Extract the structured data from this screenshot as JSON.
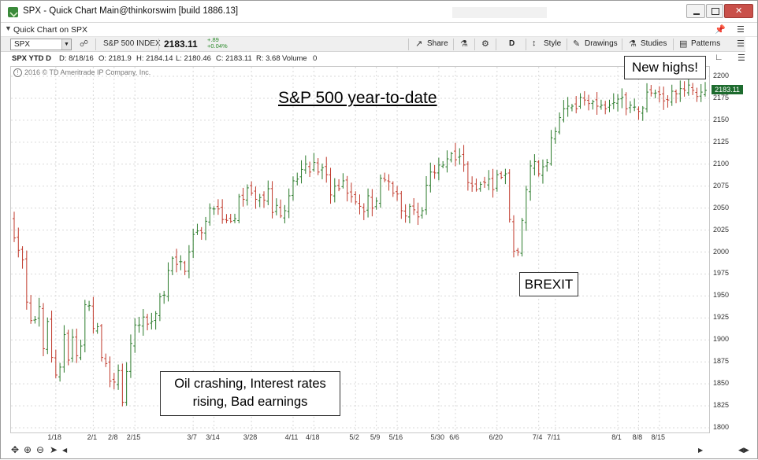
{
  "window": {
    "title": "SPX - Quick Chart Main@thinkorswim [build 1886.13]",
    "subtab": "Quick Chart on SPX"
  },
  "toolbar": {
    "symbol": "SPX",
    "index_name": "S&P 500 INDEX",
    "last": "2183.11",
    "net_change": "+.89",
    "pct_change": "+0.04%",
    "share_label": "Share",
    "timeframe_label": "D",
    "style_label": "Style",
    "drawings_label": "Drawings",
    "studies_label": "Studies",
    "patterns_label": "Patterns"
  },
  "dataline": {
    "symbol_period": "SPX YTD D",
    "date": "D: 8/18/16",
    "open": "O: 2181.9",
    "high": "H: 2184.14",
    "low": "L: 2180.46",
    "close": "C: 2183.11",
    "range": "R: 3.68",
    "volume_label": "Volume",
    "volume_value": "0"
  },
  "copyright": "2016 © TD Ameritrade IP Company, Inc.",
  "price_tag": "2183.11",
  "annotations": {
    "title": "S&P 500 year-to-date",
    "new_highs": "New highs!",
    "brexit": "BREXIT",
    "oil_line1": "Oil crashing, Interest rates",
    "oil_line2": "rising, Bad earnings"
  },
  "colors": {
    "up": "#2a7a2a",
    "down": "#c0392b",
    "grid": "#d9d9d9",
    "price_tag_bg": "#1d6b2e"
  },
  "chart_data": {
    "type": "ohlc",
    "title": "S&P 500 year-to-date",
    "x_tick_labels": [
      "1/18",
      "2/1",
      "2/8",
      "2/15",
      "3/7",
      "3/14",
      "3/28",
      "4/11",
      "4/18",
      "5/2",
      "5/9",
      "5/16",
      "5/30",
      "6/6",
      "6/20",
      "7/4",
      "7/11",
      "8/1",
      "8/8",
      "8/15"
    ],
    "y_tick_labels": [
      "1800",
      "1825",
      "1850",
      "1875",
      "1900",
      "1925",
      "1950",
      "1975",
      "2000",
      "2025",
      "2050",
      "2075",
      "2100",
      "2125",
      "2150",
      "2175",
      "2200"
    ],
    "ylim": [
      1800,
      2200
    ],
    "y_ticks": [
      1800,
      1825,
      1850,
      1875,
      1900,
      1925,
      1950,
      1975,
      2000,
      2025,
      2050,
      2075,
      2100,
      2125,
      2150,
      2175,
      2200
    ],
    "x_ticks": [
      {
        "label": "1/18",
        "date": "2016-01-18"
      },
      {
        "label": "2/1",
        "date": "2016-02-01"
      },
      {
        "label": "2/8",
        "date": "2016-02-08"
      },
      {
        "label": "2/15",
        "date": "2016-02-15"
      },
      {
        "label": "3/7",
        "date": "2016-03-07"
      },
      {
        "label": "3/14",
        "date": "2016-03-14"
      },
      {
        "label": "3/28",
        "date": "2016-03-28"
      },
      {
        "label": "4/11",
        "date": "2016-04-11"
      },
      {
        "label": "4/18",
        "date": "2016-04-18"
      },
      {
        "label": "5/2",
        "date": "2016-05-02"
      },
      {
        "label": "5/9",
        "date": "2016-05-09"
      },
      {
        "label": "5/16",
        "date": "2016-05-16"
      },
      {
        "label": "5/30",
        "date": "2016-05-30"
      },
      {
        "label": "6/6",
        "date": "2016-06-06"
      },
      {
        "label": "6/20",
        "date": "2016-06-20"
      },
      {
        "label": "7/4",
        "date": "2016-07-04"
      },
      {
        "label": "7/11",
        "date": "2016-07-11"
      },
      {
        "label": "8/1",
        "date": "2016-08-01"
      },
      {
        "label": "8/8",
        "date": "2016-08-08"
      },
      {
        "label": "8/15",
        "date": "2016-08-15"
      }
    ],
    "x_start": "2016-01-04",
    "x_end": "2016-08-18",
    "series": [
      {
        "closes": [
          2016,
          2002,
          1991,
          1943,
          1922,
          1923,
          1938,
          1890,
          1921,
          1880,
          1860,
          1869,
          1906,
          1877,
          1903,
          1882,
          1893,
          1940,
          1939,
          1913,
          1915,
          1880,
          1873,
          1853,
          1852,
          1865,
          1829,
          1864,
          1896,
          1917,
          1917,
          1926,
          1918,
          1921,
          1930,
          1949,
          1951,
          1979,
          1993,
          1986,
          1989,
          1978,
          2000,
          2020,
          2024,
          2022,
          2035,
          2050,
          2049,
          2049,
          2037,
          2036,
          2035,
          2038,
          2063,
          2060,
          2073,
          2067,
          2060,
          2062,
          2059,
          2072,
          2045,
          2053,
          2041,
          2047,
          2064,
          2081,
          2083,
          2094,
          2100,
          2091,
          2102,
          2091,
          2096,
          2088,
          2065,
          2075,
          2072,
          2081,
          2067,
          2063,
          2057,
          2052,
          2046,
          2064,
          2050,
          2058,
          2084,
          2082,
          2080,
          2067,
          2066,
          2047,
          2041,
          2052,
          2048,
          2040,
          2047,
          2076,
          2091,
          2090,
          2099,
          2099,
          2106,
          2112,
          2105,
          2109,
          2099,
          2079,
          2075,
          2071,
          2077,
          2079,
          2083,
          2071,
          2088,
          2085,
          2089,
          2037,
          2001,
          2000,
          2036,
          2071,
          2098,
          2103,
          2089,
          2097,
          2102,
          2130,
          2137,
          2153,
          2163,
          2166,
          2166,
          2163,
          2176,
          2173,
          2169,
          2171,
          2166,
          2167,
          2163,
          2167,
          2170,
          2174,
          2176,
          2163,
          2167,
          2165,
          2160,
          2164,
          2182,
          2181,
          2181,
          2179,
          2172,
          2173,
          2183,
          2180,
          2186,
          2184,
          2190,
          2184,
          2177,
          2182,
          2184
        ]
      }
    ]
  }
}
